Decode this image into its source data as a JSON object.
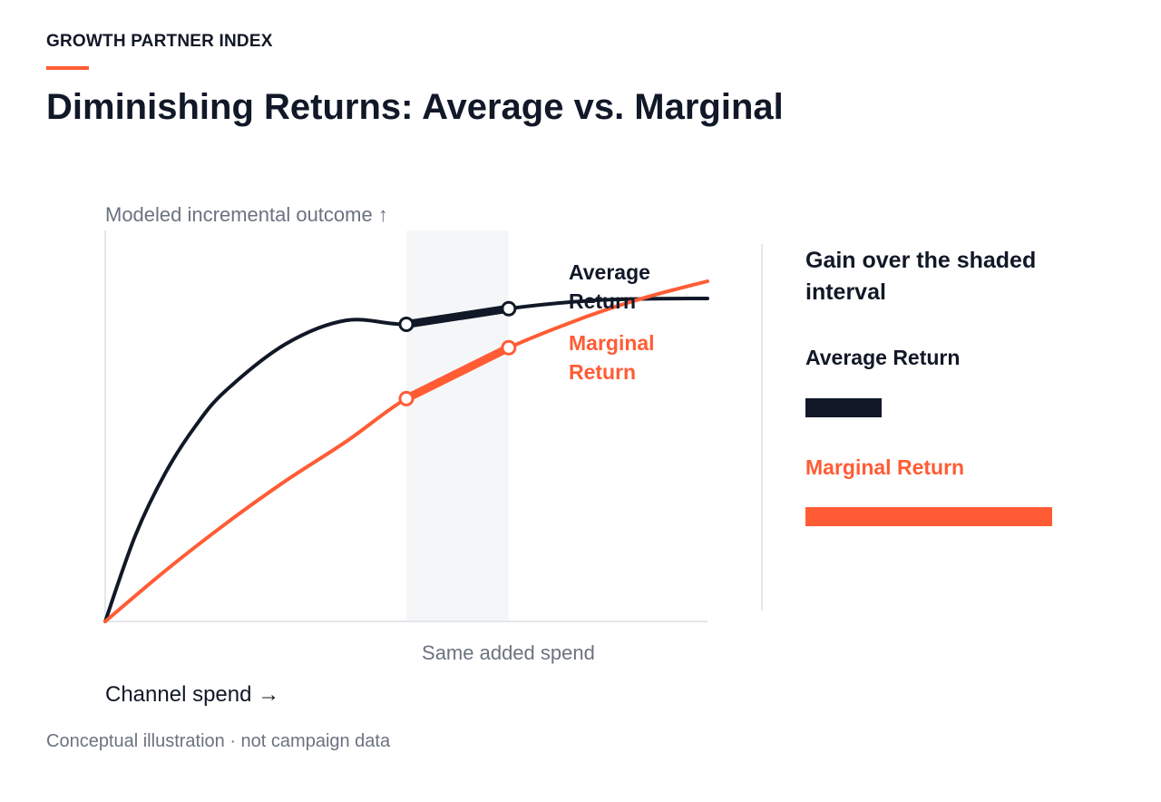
{
  "header": {
    "eyebrow": "GROWTH PARTNER INDEX",
    "title": "Diminishing Returns: Average vs. Marginal"
  },
  "colors": {
    "accent": "#ff5c35",
    "average": "#111827",
    "marginal": "#ff5c35",
    "shade": "#f5f6f8",
    "axis": "#e5e7eb",
    "muted": "#6b7280"
  },
  "chart_data": {
    "type": "line",
    "ylabel": "Modeled incremental outcome ↑",
    "xlabel": "Channel spend →",
    "shaded_interval": {
      "label": "Same added spend",
      "x": [
        0.5,
        0.67
      ]
    },
    "xlim": [
      0,
      1
    ],
    "ylim": [
      0,
      1
    ],
    "grid": false,
    "series": [
      {
        "name": "Average Return",
        "label_lines": [
          "Average",
          "Return"
        ],
        "x": [
          0.0,
          0.05,
          0.1,
          0.15,
          0.2,
          0.3,
          0.4,
          0.5,
          0.6,
          0.67,
          0.8,
          0.9,
          1.0
        ],
        "y": [
          0.0,
          0.22,
          0.38,
          0.5,
          0.59,
          0.71,
          0.77,
          0.76,
          0.78,
          0.8,
          0.82,
          0.825,
          0.826
        ],
        "interval_points": [
          0.5,
          0.67
        ]
      },
      {
        "name": "Marginal Return",
        "label_lines": [
          "Marginal",
          "Return"
        ],
        "x": [
          0.0,
          0.1,
          0.2,
          0.3,
          0.4,
          0.5,
          0.6,
          0.67,
          0.8,
          0.9,
          1.0
        ],
        "y": [
          0.0,
          0.13,
          0.25,
          0.36,
          0.46,
          0.57,
          0.64,
          0.7,
          0.78,
          0.83,
          0.87
        ],
        "interval_points": [
          0.5,
          0.67
        ]
      }
    ]
  },
  "legend": {
    "title": "Gain over the shaded interval",
    "items": [
      {
        "name": "Average Return",
        "gain": 0.04
      },
      {
        "name": "Marginal Return",
        "gain": 0.13
      }
    ],
    "max_gain": 0.13
  },
  "footnote": "Conceptual illustration · not campaign data"
}
